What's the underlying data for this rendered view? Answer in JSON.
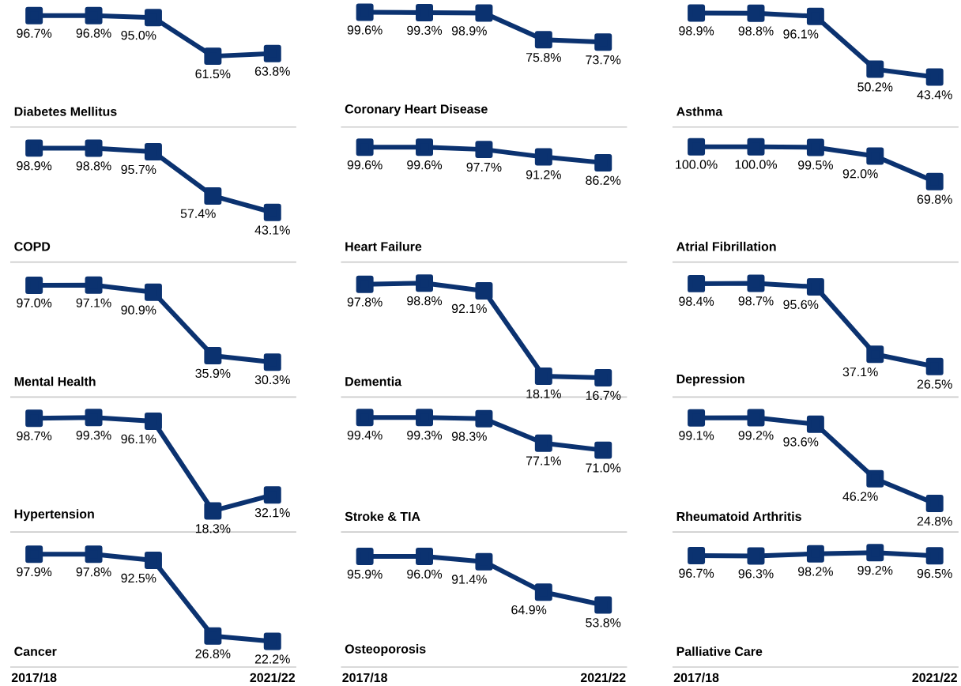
{
  "chart_data": [
    {
      "type": "line",
      "title": "Diabetes Mellitus",
      "categories": [
        null,
        null,
        null,
        null,
        null
      ],
      "values": [
        96.7,
        96.8,
        95.0,
        61.5,
        63.8
      ],
      "value_labels": [
        "96.7%",
        "96.8%",
        "95.0%",
        "61.5%",
        "63.8%"
      ],
      "color": "#0b3270",
      "marker": "square",
      "tick_labels": false
    },
    {
      "type": "line",
      "title": "Coronary Heart Disease",
      "categories": [
        null,
        null,
        null,
        null,
        null
      ],
      "values": [
        99.6,
        99.3,
        98.9,
        75.8,
        73.7
      ],
      "value_labels": [
        "99.6%",
        "99.3%",
        "98.9%",
        "75.8%",
        "73.7%"
      ],
      "color": "#0b3270",
      "marker": "square",
      "tick_labels": false
    },
    {
      "type": "line",
      "title": "Asthma",
      "categories": [
        null,
        null,
        null,
        null,
        null
      ],
      "values": [
        98.9,
        98.8,
        96.1,
        50.2,
        43.4
      ],
      "value_labels": [
        "98.9%",
        "98.8%",
        "96.1%",
        "50.2%",
        "43.4%"
      ],
      "color": "#0b3270",
      "marker": "square",
      "tick_labels": false
    },
    {
      "type": "line",
      "title": "COPD",
      "categories": [
        null,
        null,
        null,
        null,
        null
      ],
      "values": [
        98.9,
        98.8,
        95.7,
        57.4,
        43.1
      ],
      "value_labels": [
        "98.9%",
        "98.8%",
        "95.7%",
        "57.4%",
        "43.1%"
      ],
      "color": "#0b3270",
      "marker": "square",
      "tick_labels": false
    },
    {
      "type": "line",
      "title": "Heart Failure",
      "categories": [
        null,
        null,
        null,
        null,
        null
      ],
      "values": [
        99.6,
        99.6,
        97.7,
        91.2,
        86.2
      ],
      "value_labels": [
        "99.6%",
        "99.6%",
        "97.7%",
        "91.2%",
        "86.2%"
      ],
      "color": "#0b3270",
      "marker": "square",
      "tick_labels": false
    },
    {
      "type": "line",
      "title": "Atrial Fibrillation",
      "categories": [
        null,
        null,
        null,
        null,
        null
      ],
      "values": [
        100.0,
        100.0,
        99.5,
        92.0,
        69.8
      ],
      "value_labels": [
        "100.0%",
        "100.0%",
        "99.5%",
        "92.0%",
        "69.8%"
      ],
      "color": "#0b3270",
      "marker": "square",
      "tick_labels": false
    },
    {
      "type": "line",
      "title": "Mental Health",
      "categories": [
        null,
        null,
        null,
        null,
        null
      ],
      "values": [
        97.0,
        97.1,
        90.9,
        35.9,
        30.3
      ],
      "value_labels": [
        "97.0%",
        "97.1%",
        "90.9%",
        "35.9%",
        "30.3%"
      ],
      "color": "#0b3270",
      "marker": "square",
      "tick_labels": false
    },
    {
      "type": "line",
      "title": "Dementia",
      "categories": [
        null,
        null,
        null,
        null,
        null
      ],
      "values": [
        97.8,
        98.8,
        92.1,
        18.1,
        16.7
      ],
      "value_labels": [
        "97.8%",
        "98.8%",
        "92.1%",
        "18.1%",
        "16.7%"
      ],
      "color": "#0b3270",
      "marker": "square",
      "tick_labels": false
    },
    {
      "type": "line",
      "title": "Depression",
      "categories": [
        null,
        null,
        null,
        null,
        null
      ],
      "values": [
        98.4,
        98.7,
        95.6,
        37.1,
        26.5
      ],
      "value_labels": [
        "98.4%",
        "98.7%",
        "95.6%",
        "37.1%",
        "26.5%"
      ],
      "color": "#0b3270",
      "marker": "square",
      "tick_labels": false
    },
    {
      "type": "line",
      "title": "Hypertension",
      "categories": [
        null,
        null,
        null,
        null,
        null
      ],
      "values": [
        98.7,
        99.3,
        96.1,
        18.3,
        32.1
      ],
      "value_labels": [
        "98.7%",
        "99.3%",
        "96.1%",
        "18.3%",
        "32.1%"
      ],
      "color": "#0b3270",
      "marker": "square",
      "tick_labels": false
    },
    {
      "type": "line",
      "title": "Stroke & TIA",
      "categories": [
        null,
        null,
        null,
        null,
        null
      ],
      "values": [
        99.4,
        99.3,
        98.3,
        77.1,
        71.0
      ],
      "value_labels": [
        "99.4%",
        "99.3%",
        "98.3%",
        "77.1%",
        "71.0%"
      ],
      "color": "#0b3270",
      "marker": "square",
      "tick_labels": false
    },
    {
      "type": "line",
      "title": "Rheumatoid Arthritis",
      "categories": [
        null,
        null,
        null,
        null,
        null
      ],
      "values": [
        99.1,
        99.2,
        93.6,
        46.2,
        24.8
      ],
      "value_labels": [
        "99.1%",
        "99.2%",
        "93.6%",
        "46.2%",
        "24.8%"
      ],
      "color": "#0b3270",
      "marker": "square",
      "tick_labels": false
    },
    {
      "type": "line",
      "title": "Cancer",
      "categories": [
        "2017/18",
        null,
        null,
        null,
        "2021/22"
      ],
      "values": [
        97.9,
        97.8,
        92.5,
        26.8,
        22.2
      ],
      "value_labels": [
        "97.9%",
        "97.8%",
        "92.5%",
        "26.8%",
        "22.2%"
      ],
      "color": "#0b3270",
      "marker": "square",
      "tick_labels": "x"
    },
    {
      "type": "line",
      "title": "Osteoporosis",
      "categories": [
        "2017/18",
        null,
        null,
        null,
        "2021/22"
      ],
      "values": [
        95.9,
        96.0,
        91.4,
        64.9,
        53.8
      ],
      "value_labels": [
        "95.9%",
        "96.0%",
        "91.4%",
        "64.9%",
        "53.8%"
      ],
      "color": "#0b3270",
      "marker": "square",
      "tick_labels": "x"
    },
    {
      "type": "line",
      "title": "Palliative Care",
      "categories": [
        "2017/18",
        null,
        null,
        null,
        "2021/22"
      ],
      "values": [
        96.7,
        96.3,
        98.2,
        99.2,
        96.5
      ],
      "value_labels": [
        "96.7%",
        "96.3%",
        "98.2%",
        "99.2%",
        "96.5%"
      ],
      "color": "#0b3270",
      "marker": "square",
      "tick_labels": "x"
    }
  ]
}
